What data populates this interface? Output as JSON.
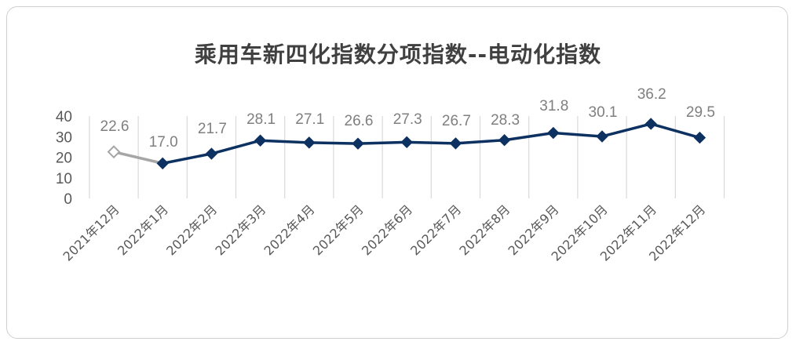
{
  "chart_data": {
    "type": "line",
    "title": "乘用车新四化指数分项指数--电动化指数",
    "categories": [
      "2021年12月",
      "2022年1月",
      "2022年2月",
      "2022年3月",
      "2022年4月",
      "2022年5月",
      "2022年6月",
      "2022年7月",
      "2022年8月",
      "2022年9月",
      "2022年10月",
      "2022年11月",
      "2022年12月"
    ],
    "values": [
      22.6,
      17.0,
      21.7,
      28.1,
      27.1,
      26.6,
      27.3,
      26.7,
      28.3,
      31.8,
      30.1,
      36.2,
      29.5
    ],
    "data_labels": [
      "22.6",
      "17.0",
      "21.7",
      "28.1",
      "27.1",
      "26.6",
      "27.3",
      "26.7",
      "28.3",
      "31.8",
      "30.1",
      "36.2",
      "29.5"
    ],
    "y_ticks": [
      "0",
      "10",
      "20",
      "30",
      "40"
    ],
    "ylim": [
      0,
      40
    ],
    "grid": "vertical",
    "legend": "none",
    "colors": {
      "main": "#0d3160",
      "previous": "#a6a6a6",
      "grid": "#d9d9d9",
      "label": "#7f7f7f"
    }
  }
}
